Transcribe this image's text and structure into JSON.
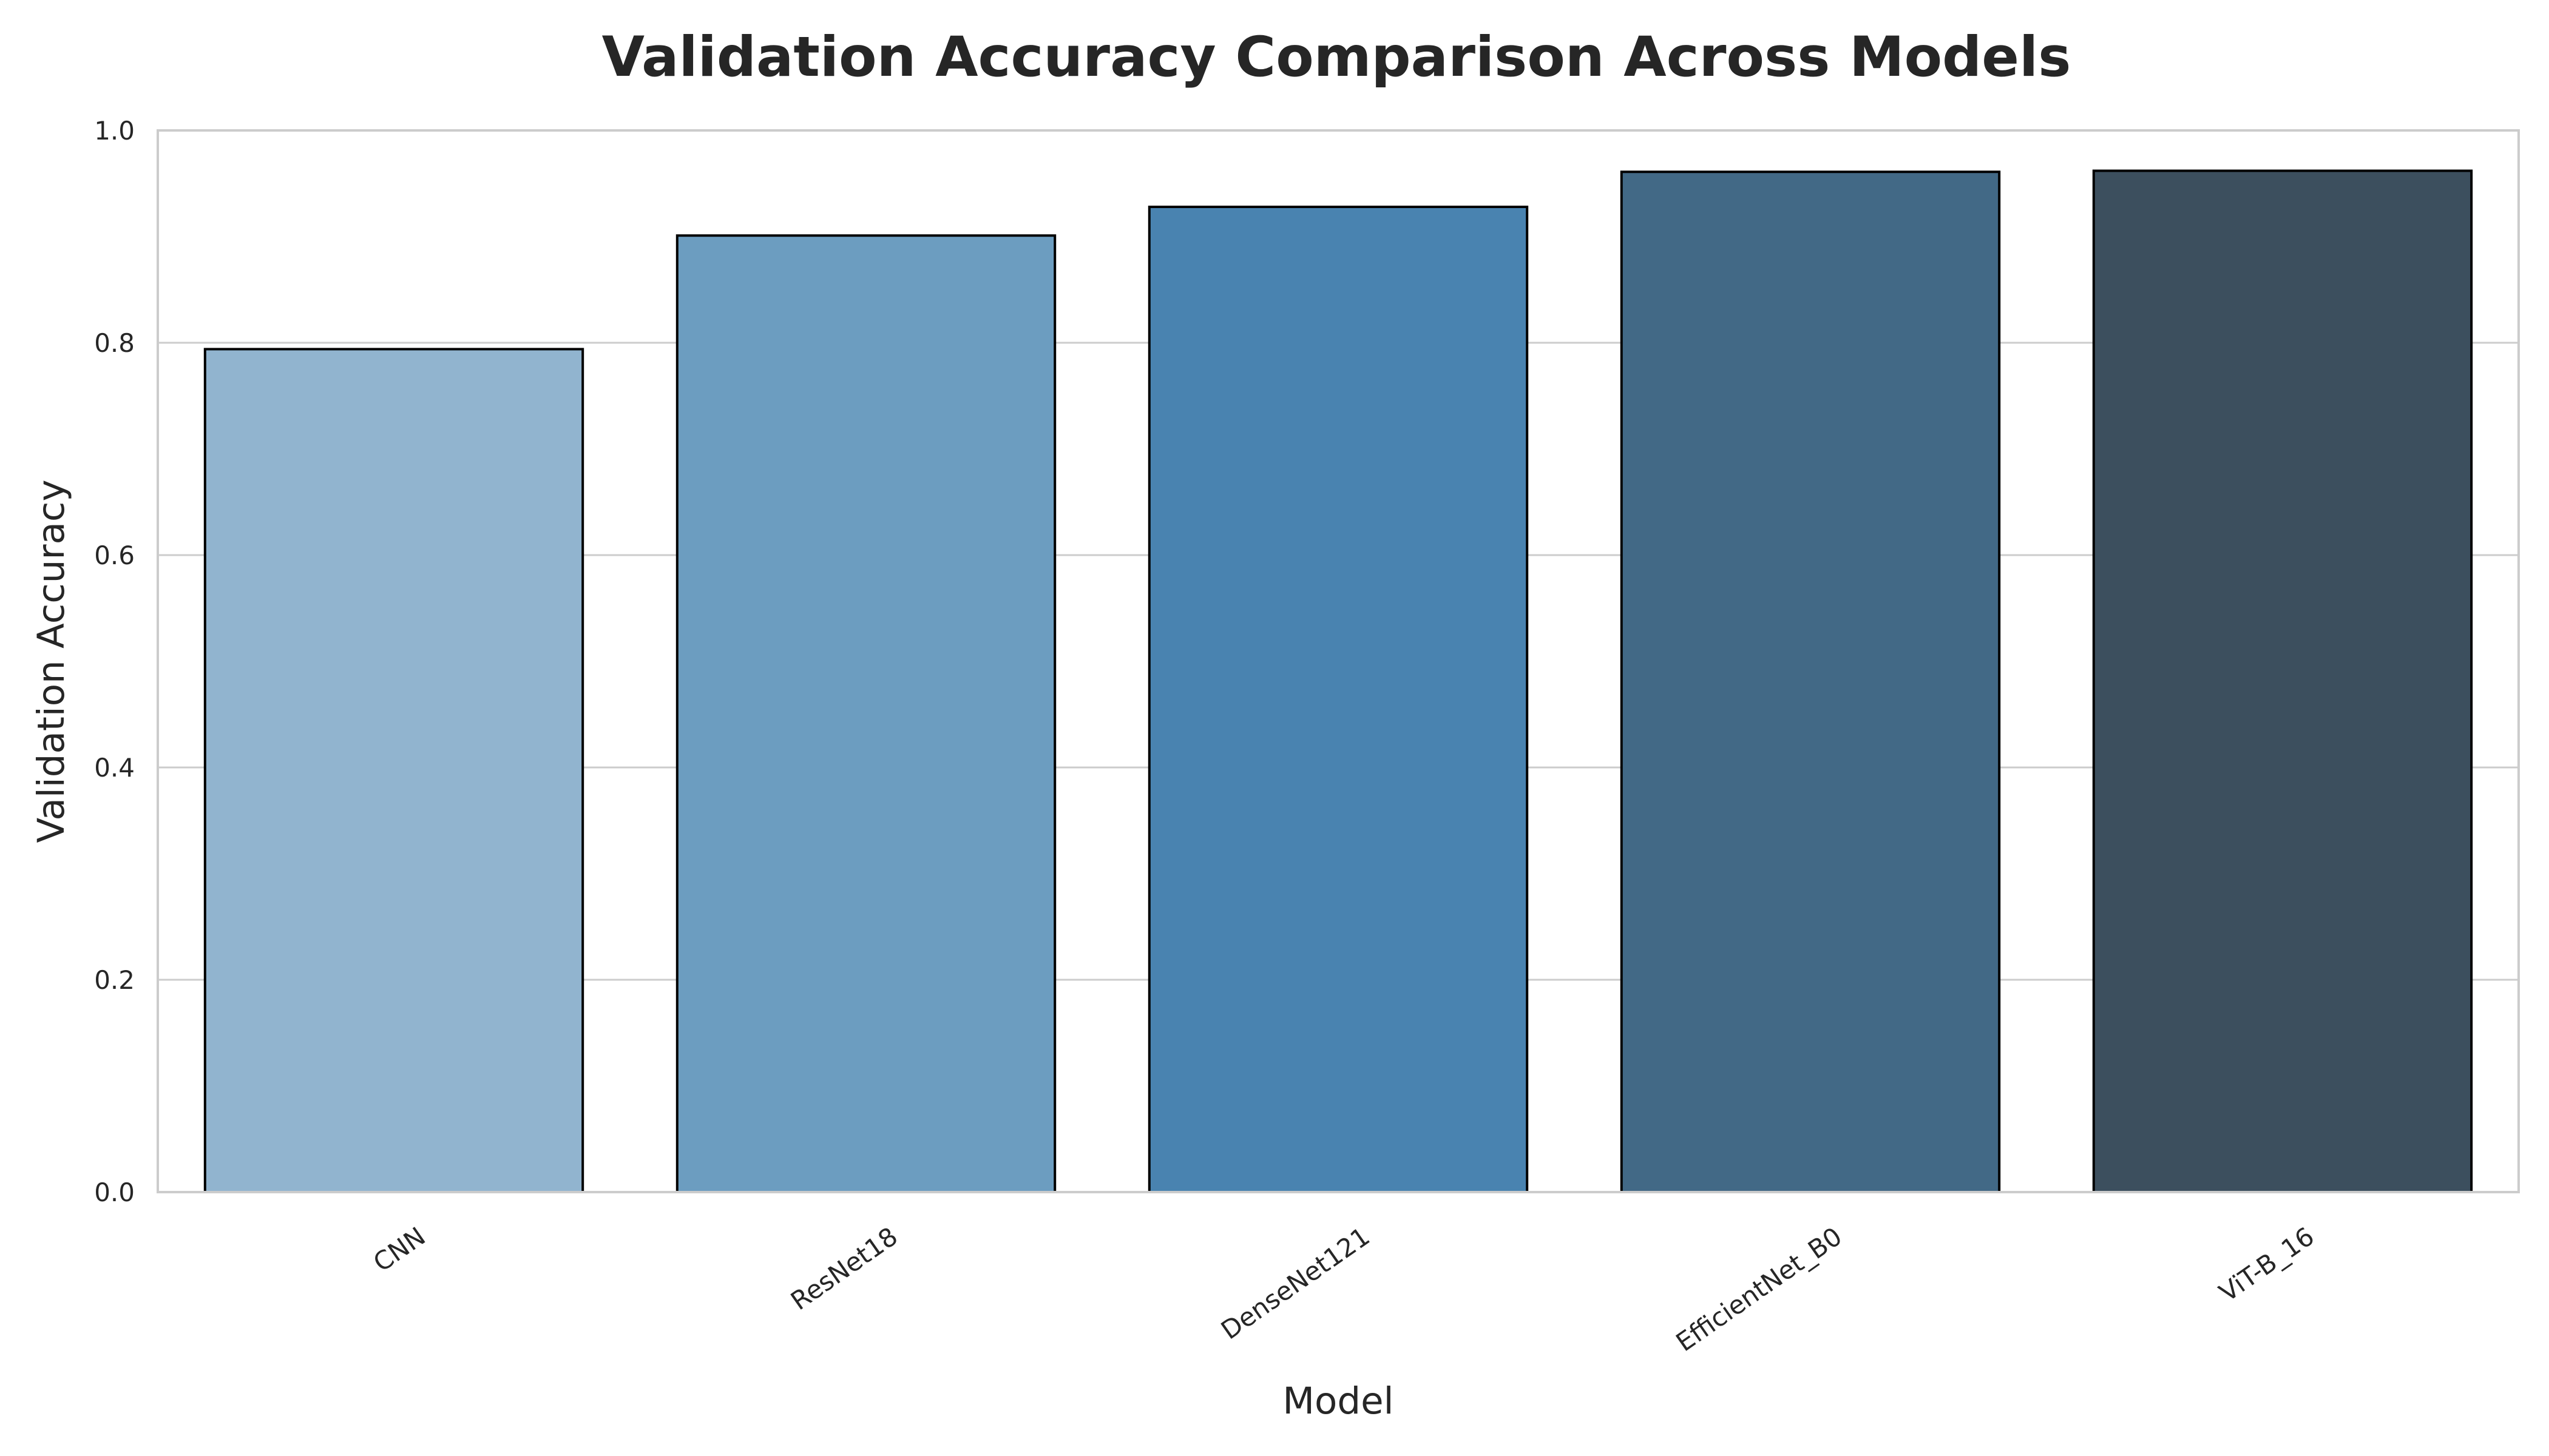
{
  "chart_data": {
    "type": "bar",
    "title": "Validation Accuracy Comparison Across Models",
    "xlabel": "Model",
    "ylabel": "Validation Accuracy",
    "categories": [
      "CNN",
      "ResNet18",
      "DenseNet121",
      "EfficientNet_B0",
      "ViT-B_16"
    ],
    "values": [
      0.794,
      0.901,
      0.928,
      0.961,
      0.962
    ],
    "colors": [
      "#91b4cf",
      "#6c9dc0",
      "#4983b0",
      "#426986",
      "#3c4f5e"
    ],
    "ylim": [
      0,
      1.0
    ],
    "yticks": [
      "0.0",
      "0.2",
      "0.4",
      "0.6",
      "0.8",
      "1.0"
    ],
    "grid": "horizontal",
    "legend": "none",
    "bar_edge_color": "#000000"
  }
}
